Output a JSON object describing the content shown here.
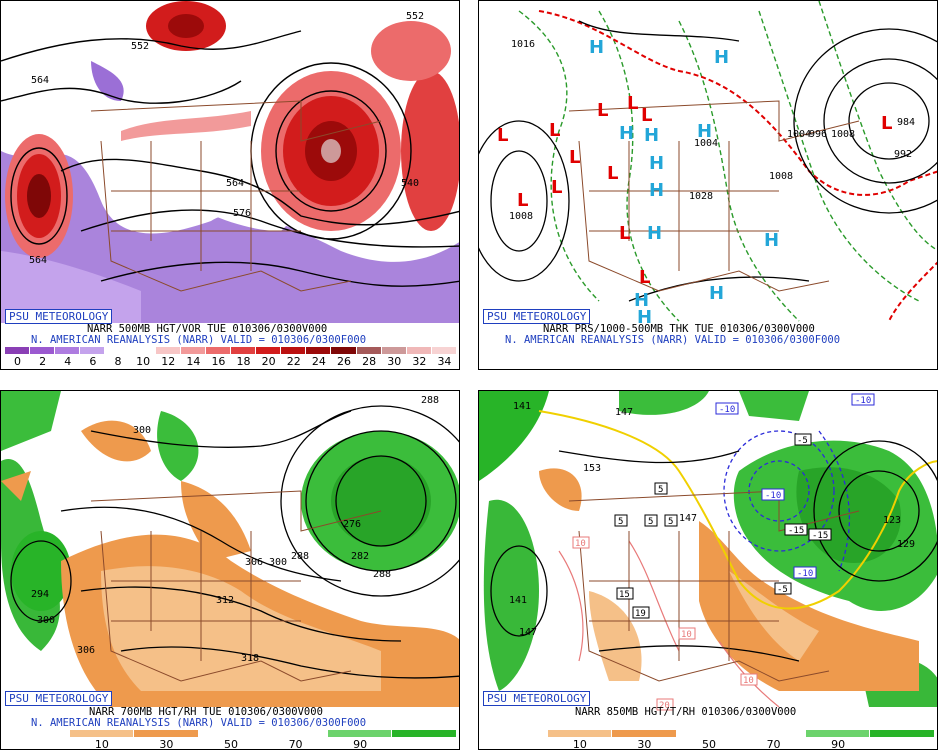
{
  "panels": [
    {
      "id": "p1",
      "logo": "PSU METEOROLOGY",
      "caption_line1": "NARR 500MB HGT/VOR TUE 010306/0300V000",
      "caption_line2": "N. AMERICAN REANALYSIS (NARR) VALID = 010306/0300F000",
      "colorbar_colors": [
        "#8a3fb5",
        "#9b59d0",
        "#ae7ce0",
        "#c4a3ec",
        "#ffffff",
        "#ffffff",
        "#f7c6c6",
        "#f29a9a",
        "#ec6b6b",
        "#e14040",
        "#d21c1c",
        "#bb1010",
        "#9c0a0a",
        "#7f0707",
        "#a55a5a",
        "#cd9999",
        "#f0b8b8",
        "#f7d3d3"
      ],
      "colorbar_ticks": [
        "0",
        "2",
        "4",
        "6",
        "8",
        "10",
        "12",
        "14",
        "16",
        "18",
        "20",
        "22",
        "24",
        "26",
        "28",
        "30",
        "32",
        "34"
      ],
      "contour_labels": [
        "552",
        "564",
        "564",
        "576",
        "540",
        "564",
        "552"
      ]
    },
    {
      "id": "p2",
      "logo": "PSU METEOROLOGY",
      "caption_line1": "NARR PRS/1000-500MB THK TUE 010306/0300V000",
      "caption_line2": "N. AMERICAN REANALYSIS (NARR) VALID = 010306/0300F000",
      "high_symbol": "H",
      "low_symbol": "L",
      "contour_labels": [
        "1016",
        "1008",
        "1028",
        "1004",
        "1008",
        "1004",
        "996",
        "1008",
        "984",
        "992"
      ]
    },
    {
      "id": "p3",
      "logo": "PSU METEOROLOGY",
      "caption_line1": "NARR 700MB HGT/RH TUE 010306/0300V000",
      "caption_line2": "N. AMERICAN REANALYSIS (NARR) VALID = 010306/0300F000",
      "colorbar_colors": [
        "#ffffff",
        "#f5c088",
        "#ee9a4d",
        "#ffffff",
        "#ffffff",
        "#6cd36c",
        "#28b428"
      ],
      "colorbar_ticks": [
        "10",
        "30",
        "50",
        "70",
        "90"
      ],
      "contour_labels": [
        "300",
        "294",
        "300",
        "306",
        "312",
        "318",
        "306",
        "300",
        "288",
        "276",
        "282",
        "288",
        "288"
      ]
    },
    {
      "id": "p4",
      "logo": "PSU METEOROLOGY",
      "caption_line1": "NARR 850MB HGT/T/RH 010306/0300V000",
      "colorbar_colors": [
        "#ffffff",
        "#f5c088",
        "#ee9a4d",
        "#ffffff",
        "#ffffff",
        "#6cd36c",
        "#28b428"
      ],
      "colorbar_ticks": [
        "10",
        "30",
        "50",
        "70",
        "90"
      ],
      "contour_labels": [
        "141",
        "147",
        "153",
        "141",
        "147",
        "129",
        "123",
        "147"
      ],
      "temp_labels": [
        "-10",
        "-10",
        "-5",
        "-10",
        "-15",
        "-15",
        "-10",
        "-5",
        "5",
        "5",
        "5",
        "5",
        "10",
        "15",
        "19",
        "10",
        "20",
        "10"
      ]
    }
  ]
}
